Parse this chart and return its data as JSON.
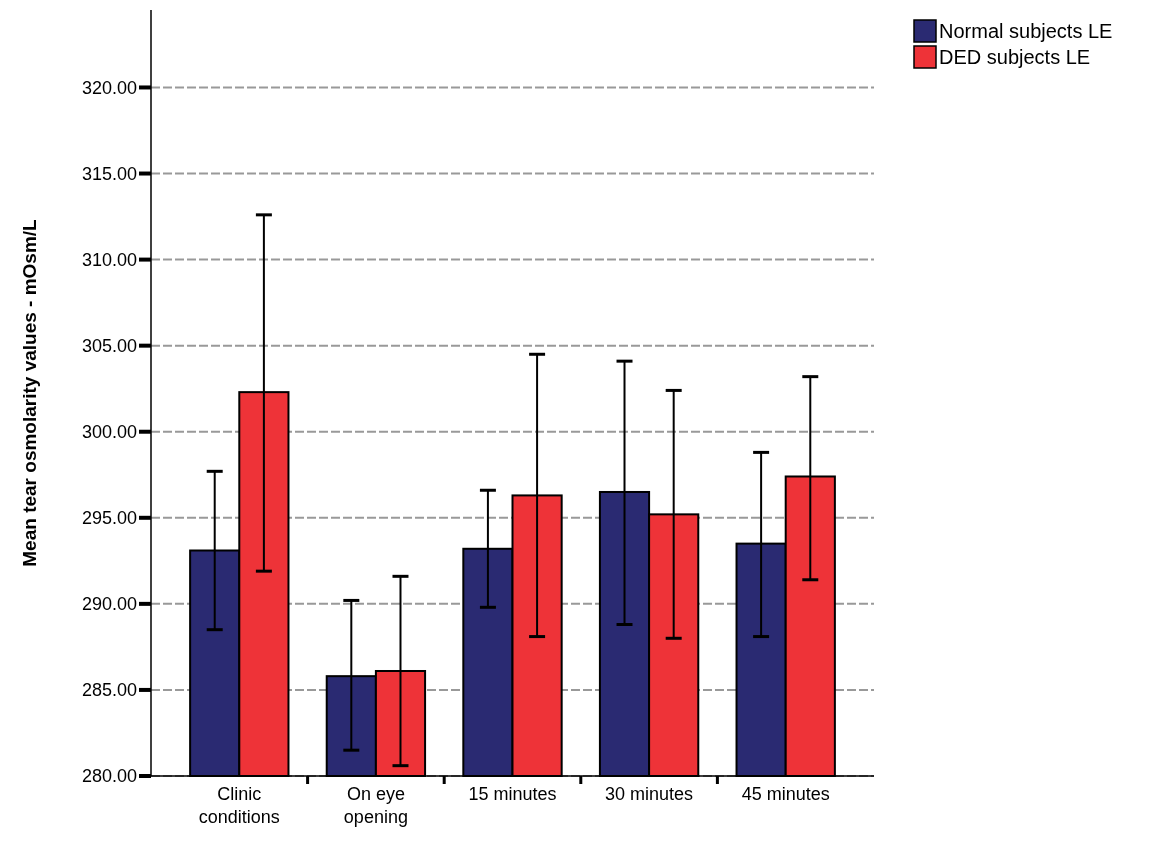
{
  "chart_data": {
    "type": "bar",
    "ylabel": "Mean tear osmolarity values - mOsm/L",
    "categories": [
      "Clinic conditions",
      "On eye opening",
      "15 minutes",
      "30 minutes",
      "45 minutes"
    ],
    "series": [
      {
        "name": "Normal subjects LE",
        "color": "#2a2a72",
        "values": [
          293.1,
          285.8,
          293.2,
          296.5,
          293.5
        ],
        "errors": [
          [
            288.5,
            297.7
          ],
          [
            281.5,
            290.2
          ],
          [
            289.8,
            296.6
          ],
          [
            288.8,
            304.1
          ],
          [
            288.1,
            298.8
          ]
        ]
      },
      {
        "name": "DED subjects LE",
        "color": "#ee3338",
        "values": [
          302.3,
          286.1,
          296.3,
          295.2,
          297.4
        ],
        "errors": [
          [
            291.9,
            312.6
          ],
          [
            280.6,
            291.6
          ],
          [
            288.1,
            304.5
          ],
          [
            288.0,
            302.4
          ],
          [
            291.4,
            303.2
          ]
        ]
      }
    ],
    "ylim": [
      280,
      324.5
    ],
    "yticks": [
      {
        "value": 280,
        "label": "280.00"
      },
      {
        "value": 285,
        "label": "285.00"
      },
      {
        "value": 290,
        "label": "290.00"
      },
      {
        "value": 295,
        "label": "295.00"
      },
      {
        "value": 300,
        "label": "300.00"
      },
      {
        "value": 305,
        "label": "305.00"
      },
      {
        "value": 310,
        "label": "310.00"
      },
      {
        "value": 315,
        "label": "315.00"
      },
      {
        "value": 320,
        "label": "320.00"
      }
    ],
    "grid": "y",
    "line_style": "dashed",
    "legend": "top right"
  }
}
